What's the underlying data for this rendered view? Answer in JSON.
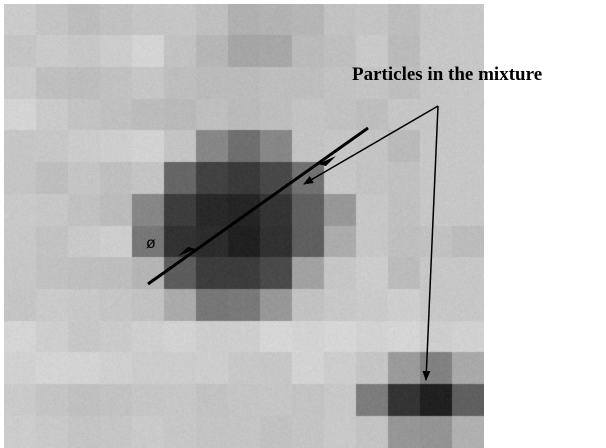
{
  "annotation": {
    "label": "Particles in the mixture",
    "diameter_symbol": "ø"
  },
  "image": {
    "description_grid_rows": 14,
    "description_grid_cols": 15,
    "gray_levels": [
      [
        203,
        196,
        189,
        193,
        197,
        198,
        191,
        176,
        179,
        182,
        194,
        196,
        189,
        198,
        199
      ],
      [
        197,
        202,
        199,
        204,
        212,
        194,
        182,
        166,
        167,
        186,
        191,
        201,
        186,
        199,
        199
      ],
      [
        202,
        191,
        189,
        193,
        198,
        190,
        187,
        187,
        190,
        190,
        194,
        196,
        190,
        198,
        199
      ],
      [
        212,
        202,
        195,
        192,
        188,
        185,
        191,
        186,
        190,
        195,
        193,
        190,
        198,
        198,
        199
      ],
      [
        198,
        199,
        203,
        206,
        210,
        196,
        135,
        111,
        135,
        195,
        198,
        196,
        186,
        199,
        199
      ],
      [
        197,
        190,
        197,
        191,
        196,
        102,
        66,
        58,
        72,
        113,
        199,
        195,
        193,
        199,
        199
      ],
      [
        201,
        199,
        193,
        188,
        135,
        61,
        41,
        37,
        52,
        96,
        152,
        199,
        192,
        199,
        199
      ],
      [
        200,
        194,
        201,
        206,
        119,
        50,
        44,
        32,
        49,
        95,
        172,
        199,
        191,
        193,
        188
      ],
      [
        199,
        193,
        191,
        190,
        181,
        92,
        60,
        60,
        74,
        162,
        198,
        204,
        188,
        199,
        199
      ],
      [
        197,
        202,
        200,
        198,
        194,
        171,
        119,
        121,
        152,
        194,
        200,
        202,
        206,
        199,
        199
      ],
      [
        213,
        206,
        199,
        202,
        207,
        210,
        205,
        206,
        214,
        211,
        214,
        210,
        213,
        206,
        209
      ],
      [
        209,
        212,
        211,
        208,
        204,
        204,
        205,
        200,
        199,
        211,
        205,
        197,
        155,
        129,
        169
      ],
      [
        202,
        196,
        192,
        194,
        198,
        199,
        194,
        197,
        198,
        195,
        200,
        125,
        52,
        32,
        95
      ],
      [
        204,
        201,
        197,
        198,
        202,
        199,
        196,
        197,
        193,
        196,
        201,
        195,
        150,
        148,
        176
      ]
    ]
  }
}
